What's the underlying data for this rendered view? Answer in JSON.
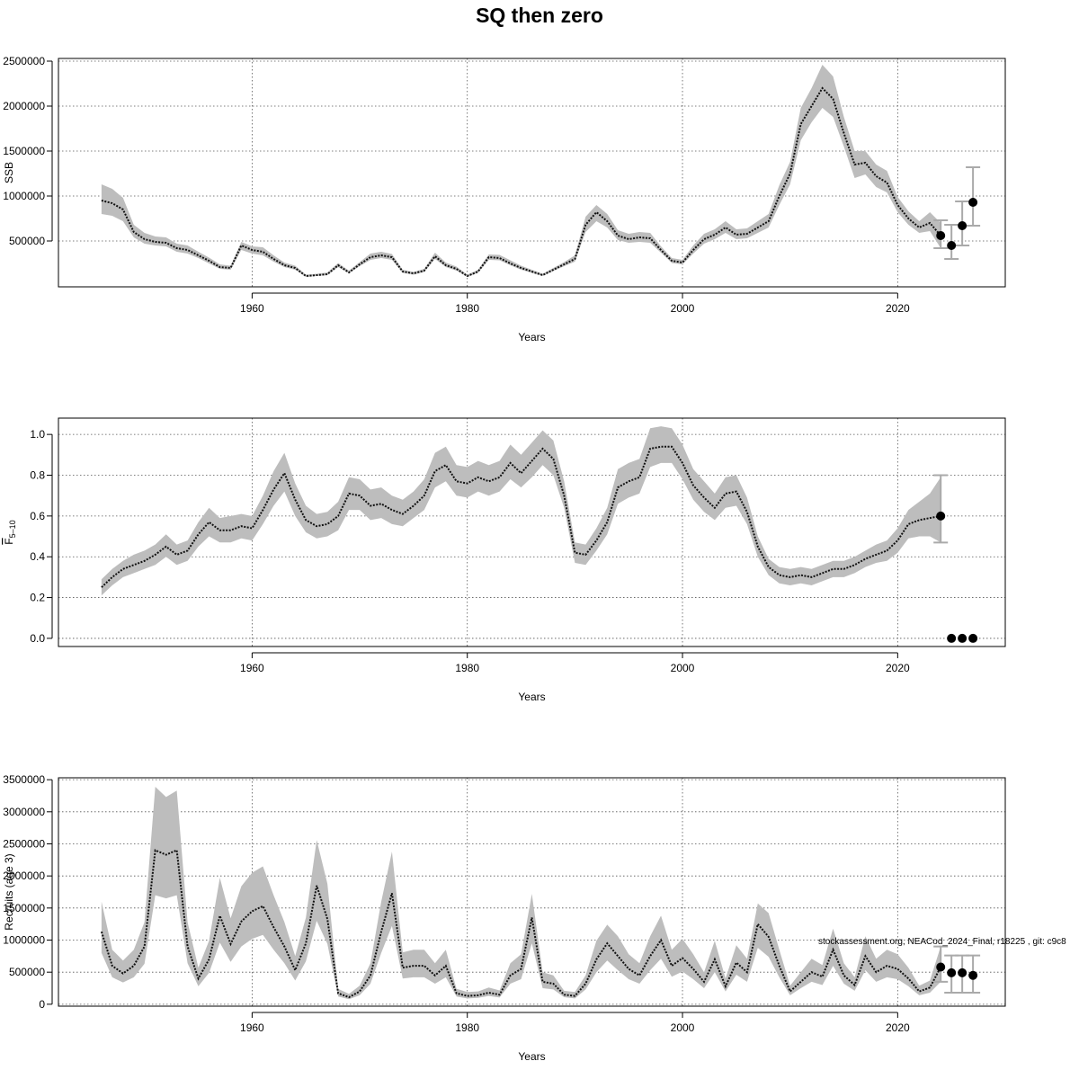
{
  "title": "SQ then zero",
  "credit": "stockassessment.org, NEACod_2024_Final, r18225 , git: c9c8",
  "colors": {
    "band": "#bdbdbd",
    "line": "#111111",
    "points": "#000000",
    "errorbar": "#aaaaaa"
  },
  "chart_data": [
    {
      "type": "line",
      "name": "ssb-panel",
      "xlabel": "Years",
      "ylabel": "SSB",
      "xlim": [
        1942,
        2030
      ],
      "ylim": [
        -10000,
        2530000
      ],
      "xticks": [
        1960,
        1980,
        2000,
        2020
      ],
      "yticks": [
        500000,
        1000000,
        1500000,
        2000000,
        2500000
      ],
      "grid": true,
      "x": [
        1946,
        1947,
        1948,
        1949,
        1950,
        1951,
        1952,
        1953,
        1954,
        1955,
        1956,
        1957,
        1958,
        1959,
        1960,
        1961,
        1962,
        1963,
        1964,
        1965,
        1966,
        1967,
        1968,
        1969,
        1970,
        1971,
        1972,
        1973,
        1974,
        1975,
        1976,
        1977,
        1978,
        1979,
        1980,
        1981,
        1982,
        1983,
        1984,
        1985,
        1986,
        1987,
        1988,
        1989,
        1990,
        1991,
        1992,
        1993,
        1994,
        1995,
        1996,
        1997,
        1998,
        1999,
        2000,
        2001,
        2002,
        2003,
        2004,
        2005,
        2006,
        2007,
        2008,
        2009,
        2010,
        2011,
        2012,
        2013,
        2014,
        2015,
        2016,
        2017,
        2018,
        2019,
        2020,
        2021,
        2022,
        2023,
        2024
      ],
      "y": [
        950000,
        920000,
        850000,
        600000,
        520000,
        490000,
        480000,
        420000,
        400000,
        340000,
        280000,
        210000,
        200000,
        450000,
        400000,
        380000,
        300000,
        230000,
        200000,
        110000,
        120000,
        130000,
        230000,
        150000,
        240000,
        320000,
        340000,
        320000,
        160000,
        140000,
        170000,
        330000,
        230000,
        190000,
        110000,
        160000,
        320000,
        310000,
        250000,
        200000,
        160000,
        120000,
        180000,
        240000,
        300000,
        680000,
        820000,
        720000,
        560000,
        520000,
        540000,
        530000,
        400000,
        280000,
        260000,
        400000,
        520000,
        570000,
        650000,
        570000,
        580000,
        650000,
        720000,
        1000000,
        1250000,
        1800000,
        2000000,
        2200000,
        2080000,
        1700000,
        1350000,
        1370000,
        1220000,
        1150000,
        900000,
        750000,
        650000,
        700000,
        560000
      ],
      "lo": [
        800000,
        780000,
        720000,
        540000,
        470000,
        450000,
        440000,
        380000,
        360000,
        310000,
        250000,
        190000,
        180000,
        400000,
        360000,
        340000,
        270000,
        210000,
        180000,
        100000,
        110000,
        120000,
        210000,
        140000,
        220000,
        290000,
        310000,
        290000,
        145000,
        125000,
        155000,
        300000,
        210000,
        170000,
        100000,
        145000,
        290000,
        285000,
        230000,
        180000,
        145000,
        110000,
        165000,
        220000,
        270000,
        600000,
        720000,
        650000,
        510000,
        480000,
        490000,
        480000,
        370000,
        255000,
        240000,
        360000,
        470000,
        520000,
        590000,
        520000,
        530000,
        590000,
        650000,
        900000,
        1130000,
        1620000,
        1820000,
        1980000,
        1880000,
        1550000,
        1200000,
        1240000,
        1100000,
        1040000,
        820000,
        680000,
        590000,
        610000,
        420000
      ],
      "hi": [
        1130000,
        1080000,
        980000,
        680000,
        590000,
        550000,
        540000,
        470000,
        450000,
        380000,
        315000,
        240000,
        225000,
        490000,
        440000,
        430000,
        340000,
        260000,
        225000,
        125000,
        135000,
        150000,
        255000,
        170000,
        265000,
        360000,
        380000,
        355000,
        180000,
        155000,
        190000,
        370000,
        260000,
        215000,
        125000,
        180000,
        350000,
        345000,
        285000,
        225000,
        180000,
        135000,
        200000,
        265000,
        340000,
        770000,
        900000,
        800000,
        620000,
        580000,
        600000,
        590000,
        440000,
        310000,
        290000,
        450000,
        580000,
        630000,
        720000,
        630000,
        640000,
        720000,
        800000,
        1120000,
        1380000,
        1980000,
        2200000,
        2460000,
        2330000,
        1880000,
        1500000,
        1500000,
        1350000,
        1280000,
        990000,
        830000,
        720000,
        820000,
        700000
      ],
      "forecast": {
        "x": [
          2024,
          2025,
          2026,
          2027
        ],
        "y": [
          560000,
          450000,
          670000,
          930000
        ],
        "lo": [
          420000,
          300000,
          450000,
          670000
        ],
        "hi": [
          730000,
          680000,
          940000,
          1320000
        ]
      }
    },
    {
      "type": "line",
      "name": "fbar-panel",
      "xlabel": "Years",
      "ylabel": "F5-10",
      "xlim": [
        1942,
        2030
      ],
      "ylim": [
        -0.04,
        1.08
      ],
      "xticks": [
        1960,
        1980,
        2000,
        2020
      ],
      "yticks": [
        "0.0",
        "0.2",
        "0.4",
        "0.6",
        "0.8",
        "1.0"
      ],
      "grid": true,
      "x": [
        1946,
        1947,
        1948,
        1949,
        1950,
        1951,
        1952,
        1953,
        1954,
        1955,
        1956,
        1957,
        1958,
        1959,
        1960,
        1961,
        1962,
        1963,
        1964,
        1965,
        1966,
        1967,
        1968,
        1969,
        1970,
        1971,
        1972,
        1973,
        1974,
        1975,
        1976,
        1977,
        1978,
        1979,
        1980,
        1981,
        1982,
        1983,
        1984,
        1985,
        1986,
        1987,
        1988,
        1989,
        1990,
        1991,
        1992,
        1993,
        1994,
        1995,
        1996,
        1997,
        1998,
        1999,
        2000,
        2001,
        2002,
        2003,
        2004,
        2005,
        2006,
        2007,
        2008,
        2009,
        2010,
        2011,
        2012,
        2013,
        2014,
        2015,
        2016,
        2017,
        2018,
        2019,
        2020,
        2021,
        2022,
        2023,
        2024
      ],
      "y": [
        0.25,
        0.3,
        0.34,
        0.36,
        0.38,
        0.41,
        0.45,
        0.41,
        0.43,
        0.51,
        0.57,
        0.53,
        0.53,
        0.55,
        0.54,
        0.63,
        0.73,
        0.81,
        0.68,
        0.58,
        0.55,
        0.56,
        0.6,
        0.71,
        0.7,
        0.65,
        0.66,
        0.63,
        0.61,
        0.65,
        0.7,
        0.82,
        0.85,
        0.77,
        0.76,
        0.79,
        0.77,
        0.79,
        0.86,
        0.81,
        0.87,
        0.93,
        0.88,
        0.7,
        0.42,
        0.41,
        0.48,
        0.57,
        0.74,
        0.77,
        0.79,
        0.93,
        0.94,
        0.94,
        0.86,
        0.75,
        0.69,
        0.64,
        0.71,
        0.72,
        0.62,
        0.45,
        0.35,
        0.31,
        0.3,
        0.31,
        0.3,
        0.32,
        0.34,
        0.34,
        0.36,
        0.39,
        0.41,
        0.43,
        0.48,
        0.56,
        0.58,
        0.59,
        0.6
      ],
      "lo": [
        0.21,
        0.26,
        0.3,
        0.32,
        0.34,
        0.36,
        0.4,
        0.36,
        0.38,
        0.45,
        0.5,
        0.47,
        0.47,
        0.49,
        0.48,
        0.56,
        0.65,
        0.72,
        0.6,
        0.52,
        0.49,
        0.5,
        0.53,
        0.63,
        0.63,
        0.58,
        0.59,
        0.56,
        0.55,
        0.59,
        0.63,
        0.74,
        0.77,
        0.7,
        0.69,
        0.72,
        0.7,
        0.72,
        0.78,
        0.74,
        0.79,
        0.85,
        0.8,
        0.64,
        0.37,
        0.36,
        0.43,
        0.51,
        0.66,
        0.69,
        0.71,
        0.84,
        0.86,
        0.86,
        0.78,
        0.68,
        0.62,
        0.58,
        0.64,
        0.65,
        0.56,
        0.4,
        0.31,
        0.27,
        0.26,
        0.27,
        0.26,
        0.28,
        0.3,
        0.3,
        0.32,
        0.35,
        0.37,
        0.38,
        0.42,
        0.49,
        0.5,
        0.5,
        0.47
      ],
      "hi": [
        0.29,
        0.34,
        0.38,
        0.41,
        0.43,
        0.46,
        0.51,
        0.46,
        0.48,
        0.57,
        0.64,
        0.59,
        0.6,
        0.61,
        0.6,
        0.7,
        0.82,
        0.91,
        0.76,
        0.65,
        0.61,
        0.62,
        0.67,
        0.79,
        0.78,
        0.73,
        0.74,
        0.7,
        0.68,
        0.72,
        0.78,
        0.91,
        0.94,
        0.85,
        0.84,
        0.87,
        0.85,
        0.87,
        0.95,
        0.9,
        0.96,
        1.02,
        0.97,
        0.77,
        0.47,
        0.46,
        0.54,
        0.64,
        0.83,
        0.86,
        0.88,
        1.03,
        1.04,
        1.03,
        0.95,
        0.83,
        0.77,
        0.71,
        0.79,
        0.8,
        0.69,
        0.5,
        0.39,
        0.35,
        0.34,
        0.35,
        0.34,
        0.36,
        0.38,
        0.38,
        0.4,
        0.43,
        0.46,
        0.48,
        0.54,
        0.63,
        0.67,
        0.71,
        0.79
      ],
      "forecast": {
        "x": [
          2024,
          2025,
          2026,
          2027
        ],
        "y": [
          0.6,
          0.0,
          0.0,
          0.0
        ],
        "lo": [
          0.47,
          0.0,
          0.0,
          0.0
        ],
        "hi": [
          0.8,
          0.0,
          0.0,
          0.0
        ]
      }
    },
    {
      "type": "line",
      "name": "recruits-panel",
      "xlabel": "Years",
      "ylabel": "Recruits (age 3)",
      "xlim": [
        1942,
        2030
      ],
      "ylim": [
        -30000,
        3530000
      ],
      "xticks": [
        1960,
        1980,
        2000,
        2020
      ],
      "yticks": [
        0,
        500000,
        1000000,
        1500000,
        2000000,
        2500000,
        3000000,
        3500000
      ],
      "grid": true,
      "x": [
        1946,
        1947,
        1948,
        1949,
        1950,
        1951,
        1952,
        1953,
        1954,
        1955,
        1956,
        1957,
        1958,
        1959,
        1960,
        1961,
        1962,
        1963,
        1964,
        1965,
        1966,
        1967,
        1968,
        1969,
        1970,
        1971,
        1972,
        1973,
        1974,
        1975,
        1976,
        1977,
        1978,
        1979,
        1980,
        1981,
        1982,
        1983,
        1984,
        1985,
        1986,
        1987,
        1988,
        1989,
        1990,
        1991,
        1992,
        1993,
        1994,
        1995,
        1996,
        1997,
        1998,
        1999,
        2000,
        2001,
        2002,
        2003,
        2004,
        2005,
        2006,
        2007,
        2008,
        2009,
        2010,
        2011,
        2012,
        2013,
        2014,
        2015,
        2016,
        2017,
        2018,
        2019,
        2020,
        2021,
        2022,
        2023,
        2024
      ],
      "y": [
        1130000,
        600000,
        480000,
        600000,
        900000,
        2400000,
        2330000,
        2400000,
        900000,
        400000,
        700000,
        1380000,
        940000,
        1290000,
        1450000,
        1530000,
        1200000,
        900000,
        530000,
        950000,
        1850000,
        1330000,
        170000,
        110000,
        200000,
        450000,
        1130000,
        1730000,
        570000,
        600000,
        600000,
        450000,
        600000,
        170000,
        130000,
        140000,
        180000,
        150000,
        450000,
        550000,
        1350000,
        350000,
        320000,
        150000,
        130000,
        320000,
        700000,
        950000,
        750000,
        550000,
        450000,
        750000,
        1000000,
        600000,
        720000,
        550000,
        350000,
        700000,
        280000,
        650000,
        500000,
        1250000,
        1050000,
        600000,
        200000,
        350000,
        500000,
        430000,
        850000,
        450000,
        300000,
        750000,
        500000,
        600000,
        550000,
        400000,
        200000,
        260000,
        580000
      ],
      "lo": [
        800000,
        420000,
        340000,
        420000,
        630000,
        1700000,
        1650000,
        1700000,
        640000,
        280000,
        490000,
        960000,
        660000,
        900000,
        1020000,
        1080000,
        850000,
        640000,
        370000,
        670000,
        1300000,
        940000,
        120000,
        80000,
        140000,
        320000,
        800000,
        1220000,
        400000,
        420000,
        420000,
        320000,
        420000,
        120000,
        90000,
        100000,
        130000,
        105000,
        320000,
        390000,
        950000,
        250000,
        230000,
        110000,
        90000,
        230000,
        500000,
        680000,
        530000,
        390000,
        320000,
        530000,
        710000,
        430000,
        510000,
        390000,
        250000,
        500000,
        200000,
        460000,
        350000,
        880000,
        740000,
        420000,
        140000,
        250000,
        350000,
        300000,
        600000,
        320000,
        210000,
        530000,
        350000,
        420000,
        390000,
        280000,
        140000,
        180000,
        350000
      ],
      "hi": [
        1600000,
        850000,
        680000,
        850000,
        1280000,
        3390000,
        3230000,
        3330000,
        1280000,
        570000,
        990000,
        1970000,
        1340000,
        1840000,
        2050000,
        2150000,
        1700000,
        1280000,
        750000,
        1350000,
        2560000,
        1880000,
        240000,
        160000,
        290000,
        640000,
        1600000,
        2380000,
        810000,
        850000,
        850000,
        640000,
        850000,
        240000,
        190000,
        200000,
        260000,
        215000,
        640000,
        780000,
        1720000,
        500000,
        450000,
        210000,
        190000,
        450000,
        990000,
        1240000,
        1060000,
        780000,
        640000,
        1060000,
        1380000,
        850000,
        1020000,
        780000,
        500000,
        990000,
        400000,
        920000,
        710000,
        1570000,
        1420000,
        850000,
        290000,
        500000,
        710000,
        610000,
        1180000,
        640000,
        420000,
        1060000,
        710000,
        850000,
        780000,
        570000,
        290000,
        370000,
        900000
      ],
      "forecast": {
        "x": [
          2024,
          2025,
          2026,
          2027
        ],
        "y": [
          580000,
          490000,
          490000,
          450000
        ],
        "lo": [
          350000,
          180000,
          180000,
          180000
        ],
        "hi": [
          900000,
          760000,
          760000,
          760000
        ]
      }
    }
  ]
}
